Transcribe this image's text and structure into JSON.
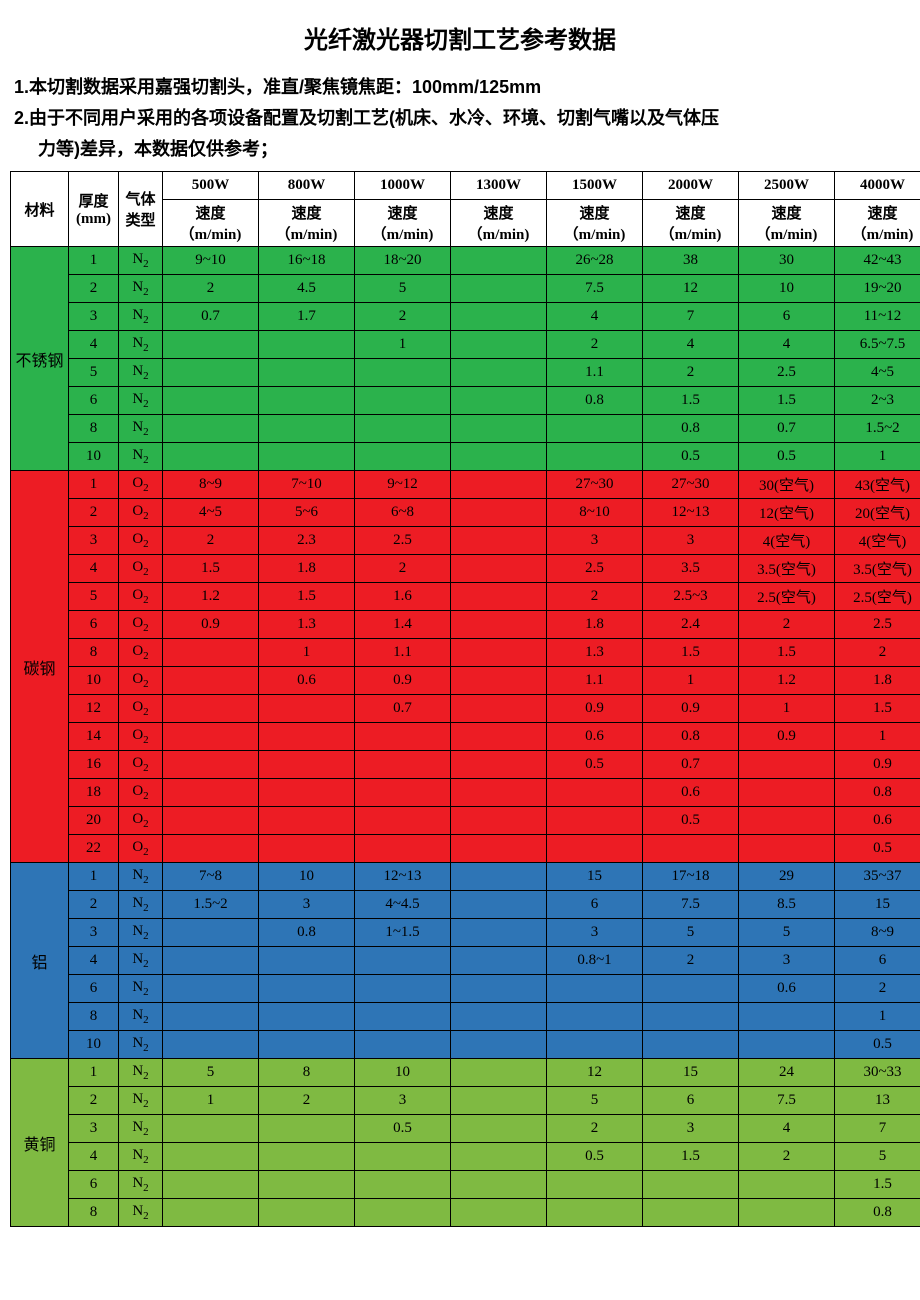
{
  "title": "光纤激光器切割工艺参考数据",
  "notes": [
    "1.本切割数据采用嘉强切割头，准直/聚焦镜焦距：100mm/125mm",
    "2.由于不同用户采用的各项设备配置及切割工艺(机床、水冷、环境、切割气嘴以及气体压",
    "力等)差异，本数据仅供参考；"
  ],
  "headers": {
    "material": "材料",
    "thickness": "厚度\n(mm)",
    "gas": "气体\n类型",
    "powers": [
      "500W",
      "800W",
      "1000W",
      "1300W",
      "1500W",
      "2000W",
      "2500W",
      "4000W"
    ],
    "speed_label": "速度\n（m/min)"
  },
  "colors": {
    "stainless": "#2bb24c",
    "carbon": "#ed1c24",
    "aluminum": "#2e75b6",
    "brass": "#7fba42",
    "header_bg": "#ffffff",
    "border": "#000000"
  },
  "materials": [
    {
      "name": "不锈钢",
      "color": "#2bb24c",
      "text": "#000000",
      "rows": [
        {
          "t": "1",
          "g": "N2",
          "v": [
            "9~10",
            "16~18",
            "18~20",
            "",
            "26~28",
            "38",
            "30",
            "42~43"
          ]
        },
        {
          "t": "2",
          "g": "N2",
          "v": [
            "2",
            "4.5",
            "5",
            "",
            "7.5",
            "12",
            "10",
            "19~20"
          ]
        },
        {
          "t": "3",
          "g": "N2",
          "v": [
            "0.7",
            "1.7",
            "2",
            "",
            "4",
            "7",
            "6",
            "11~12"
          ]
        },
        {
          "t": "4",
          "g": "N2",
          "v": [
            "",
            "",
            "1",
            "",
            "2",
            "4",
            "4",
            "6.5~7.5"
          ]
        },
        {
          "t": "5",
          "g": "N2",
          "v": [
            "",
            "",
            "",
            "",
            "1.1",
            "2",
            "2.5",
            "4~5"
          ]
        },
        {
          "t": "6",
          "g": "N2",
          "v": [
            "",
            "",
            "",
            "",
            "0.8",
            "1.5",
            "1.5",
            "2~3"
          ]
        },
        {
          "t": "8",
          "g": "N2",
          "v": [
            "",
            "",
            "",
            "",
            "",
            "0.8",
            "0.7",
            "1.5~2"
          ]
        },
        {
          "t": "10",
          "g": "N2",
          "v": [
            "",
            "",
            "",
            "",
            "",
            "0.5",
            "0.5",
            "1"
          ]
        }
      ]
    },
    {
      "name": "碳钢",
      "color": "#ed1c24",
      "text": "#000000",
      "rows": [
        {
          "t": "1",
          "g": "O2",
          "v": [
            "8~9",
            "7~10",
            "9~12",
            "",
            "27~30",
            "27~30",
            "30(空气)",
            "43(空气)"
          ]
        },
        {
          "t": "2",
          "g": "O2",
          "v": [
            "4~5",
            "5~6",
            "6~8",
            "",
            "8~10",
            "12~13",
            "12(空气)",
            "20(空气)"
          ]
        },
        {
          "t": "3",
          "g": "O2",
          "v": [
            "2",
            "2.3",
            "2.5",
            "",
            "3",
            "3",
            "4(空气)",
            "4(空气)"
          ]
        },
        {
          "t": "4",
          "g": "O2",
          "v": [
            "1.5",
            "1.8",
            "2",
            "",
            "2.5",
            "3.5",
            "3.5(空气)",
            "3.5(空气)"
          ]
        },
        {
          "t": "5",
          "g": "O2",
          "v": [
            "1.2",
            "1.5",
            "1.6",
            "",
            "2",
            "2.5~3",
            "2.5(空气)",
            "2.5(空气)"
          ]
        },
        {
          "t": "6",
          "g": "O2",
          "v": [
            "0.9",
            "1.3",
            "1.4",
            "",
            "1.8",
            "2.4",
            "2",
            "2.5"
          ]
        },
        {
          "t": "8",
          "g": "O2",
          "v": [
            "",
            "1",
            "1.1",
            "",
            "1.3",
            "1.5",
            "1.5",
            "2"
          ]
        },
        {
          "t": "10",
          "g": "O2",
          "v": [
            "",
            "0.6",
            "0.9",
            "",
            "1.1",
            "1",
            "1.2",
            "1.8"
          ]
        },
        {
          "t": "12",
          "g": "O2",
          "v": [
            "",
            "",
            "0.7",
            "",
            "0.9",
            "0.9",
            "1",
            "1.5"
          ]
        },
        {
          "t": "14",
          "g": "O2",
          "v": [
            "",
            "",
            "",
            "",
            "0.6",
            "0.8",
            "0.9",
            "1"
          ]
        },
        {
          "t": "16",
          "g": "O2",
          "v": [
            "",
            "",
            "",
            "",
            "0.5",
            "0.7",
            "",
            "0.9"
          ]
        },
        {
          "t": "18",
          "g": "O2",
          "v": [
            "",
            "",
            "",
            "",
            "",
            "0.6",
            "",
            "0.8"
          ]
        },
        {
          "t": "20",
          "g": "O2",
          "v": [
            "",
            "",
            "",
            "",
            "",
            "0.5",
            "",
            "0.6"
          ]
        },
        {
          "t": "22",
          "g": "O2",
          "v": [
            "",
            "",
            "",
            "",
            "",
            "",
            "",
            "0.5"
          ]
        }
      ]
    },
    {
      "name": "铝",
      "color": "#2e75b6",
      "text": "#000000",
      "rows": [
        {
          "t": "1",
          "g": "N2",
          "v": [
            "7~8",
            "10",
            "12~13",
            "",
            "15",
            "17~18",
            "29",
            "35~37"
          ]
        },
        {
          "t": "2",
          "g": "N2",
          "v": [
            "1.5~2",
            "3",
            "4~4.5",
            "",
            "6",
            "7.5",
            "8.5",
            "15"
          ]
        },
        {
          "t": "3",
          "g": "N2",
          "v": [
            "",
            "0.8",
            "1~1.5",
            "",
            "3",
            "5",
            "5",
            "8~9"
          ]
        },
        {
          "t": "4",
          "g": "N2",
          "v": [
            "",
            "",
            "",
            "",
            "0.8~1",
            "2",
            "3",
            "6"
          ]
        },
        {
          "t": "6",
          "g": "N2",
          "v": [
            "",
            "",
            "",
            "",
            "",
            "",
            "0.6",
            "2"
          ]
        },
        {
          "t": "8",
          "g": "N2",
          "v": [
            "",
            "",
            "",
            "",
            "",
            "",
            "",
            "1"
          ]
        },
        {
          "t": "10",
          "g": "N2",
          "v": [
            "",
            "",
            "",
            "",
            "",
            "",
            "",
            "0.5"
          ]
        }
      ]
    },
    {
      "name": "黄铜",
      "color": "#7fba42",
      "text": "#000000",
      "rows": [
        {
          "t": "1",
          "g": "N2",
          "v": [
            "5",
            "8",
            "10",
            "",
            "12",
            "15",
            "24",
            "30~33"
          ]
        },
        {
          "t": "2",
          "g": "N2",
          "v": [
            "1",
            "2",
            "3",
            "",
            "5",
            "6",
            "7.5",
            "13"
          ]
        },
        {
          "t": "3",
          "g": "N2",
          "v": [
            "",
            "",
            "0.5",
            "",
            "2",
            "3",
            "4",
            "7"
          ]
        },
        {
          "t": "4",
          "g": "N2",
          "v": [
            "",
            "",
            "",
            "",
            "0.5",
            "1.5",
            "2",
            "5"
          ]
        },
        {
          "t": "6",
          "g": "N2",
          "v": [
            "",
            "",
            "",
            "",
            "",
            "",
            "",
            "1.5"
          ]
        },
        {
          "t": "8",
          "g": "N2",
          "v": [
            "",
            "",
            "",
            "",
            "",
            "",
            "",
            "0.8"
          ]
        }
      ]
    }
  ]
}
